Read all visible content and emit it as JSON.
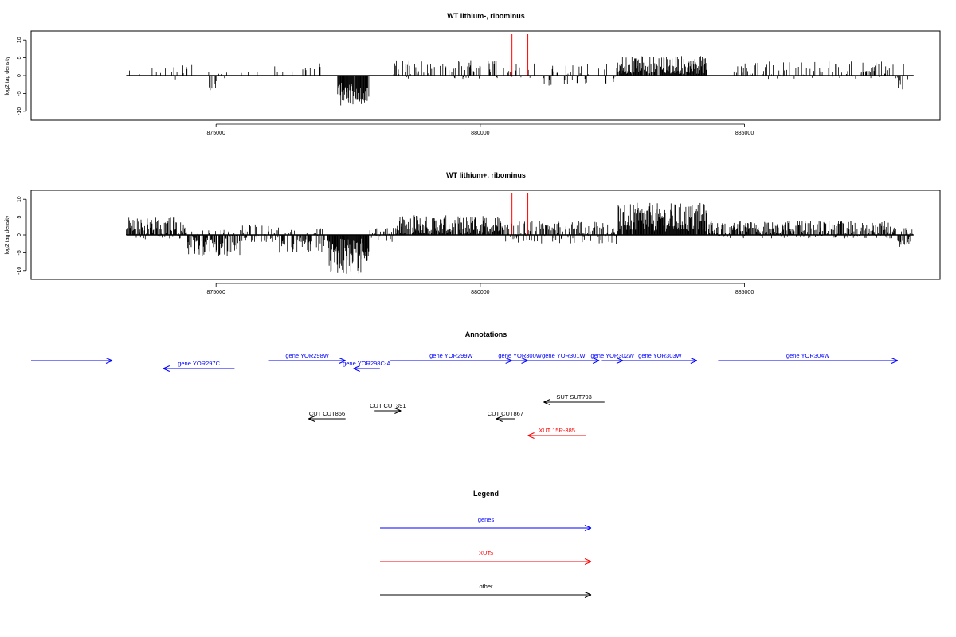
{
  "colors": {
    "gene": "#0000ff",
    "xut": "#ff0000",
    "other": "#000000",
    "marker": "#ff0000",
    "bars": "#000000"
  },
  "chart_data": [
    {
      "type": "bar",
      "title": "WT lithium-, ribominus",
      "ylabel": "log2 tag density",
      "xlim": [
        871500,
        888700
      ],
      "ylim": [
        -12.5,
        12.5
      ],
      "yticks": [
        -10,
        -5,
        0,
        5,
        10
      ],
      "xticks": [
        875000,
        880000,
        885000
      ],
      "x_tick_labels": [
        "875000",
        "880000",
        "885000"
      ],
      "marker_lines": [
        880600,
        880900
      ],
      "data_start": 873300,
      "data_end": 888200,
      "bar_step": 10,
      "segments": [
        {
          "from": 873300,
          "to": 874100,
          "lo": 0,
          "hi": 3.5,
          "p": 0.12
        },
        {
          "from": 874100,
          "to": 874800,
          "lo": -1.5,
          "hi": 3,
          "p": 0.07
        },
        {
          "from": 874800,
          "to": 875250,
          "lo": -5,
          "hi": 1,
          "p": 0.35
        },
        {
          "from": 875250,
          "to": 876800,
          "lo": 0,
          "hi": 3,
          "p": 0.04
        },
        {
          "from": 876800,
          "to": 877000,
          "lo": -2,
          "hi": 3.5,
          "p": 0.2
        },
        {
          "from": 877000,
          "to": 877300,
          "lo": 0,
          "hi": 0,
          "p": 0
        },
        {
          "from": 877300,
          "to": 877900,
          "lo": -8.5,
          "hi": -2,
          "p": 0.95
        },
        {
          "from": 877900,
          "to": 878300,
          "lo": -3,
          "hi": 0,
          "p": 0.03
        },
        {
          "from": 878300,
          "to": 880400,
          "lo": -1,
          "hi": 4.5,
          "p": 0.42
        },
        {
          "from": 880400,
          "to": 881100,
          "lo": -1,
          "hi": 4,
          "p": 0.2
        },
        {
          "from": 881100,
          "to": 882600,
          "lo": -3,
          "hi": 3.5,
          "p": 0.3
        },
        {
          "from": 882600,
          "to": 884300,
          "lo": 0.5,
          "hi": 5.5,
          "p": 0.9
        },
        {
          "from": 884300,
          "to": 884800,
          "lo": 0,
          "hi": 0,
          "p": 0
        },
        {
          "from": 884800,
          "to": 888100,
          "lo": -1,
          "hi": 4,
          "p": 0.35
        },
        {
          "from": 887900,
          "to": 888000,
          "lo": -4,
          "hi": 0,
          "p": 0.3
        }
      ]
    },
    {
      "type": "bar",
      "title": "WT lithium+, ribominus",
      "ylabel": "log2 tag density",
      "xlim": [
        871500,
        888700
      ],
      "ylim": [
        -12.5,
        12.5
      ],
      "yticks": [
        -10,
        -5,
        0,
        5,
        10
      ],
      "xticks": [
        875000,
        880000,
        885000
      ],
      "x_tick_labels": [
        "875000",
        "880000",
        "885000"
      ],
      "marker_lines": [
        880600,
        880900
      ],
      "data_start": 873300,
      "data_end": 888200,
      "bar_step": 10,
      "segments": [
        {
          "from": 873300,
          "to": 874450,
          "lo": -1.5,
          "hi": 5,
          "p": 0.9
        },
        {
          "from": 874450,
          "to": 875500,
          "lo": -6,
          "hi": 1.5,
          "p": 0.9
        },
        {
          "from": 875500,
          "to": 876200,
          "lo": -2,
          "hi": 3,
          "p": 0.6
        },
        {
          "from": 876200,
          "to": 877100,
          "lo": -5,
          "hi": 2,
          "p": 0.7
        },
        {
          "from": 877100,
          "to": 877900,
          "lo": -11,
          "hi": -1,
          "p": 0.98
        },
        {
          "from": 877900,
          "to": 878400,
          "lo": -2,
          "hi": 2,
          "p": 0.4
        },
        {
          "from": 878400,
          "to": 880400,
          "lo": 0,
          "hi": 5.5,
          "p": 0.92
        },
        {
          "from": 880400,
          "to": 882600,
          "lo": -2.5,
          "hi": 4,
          "p": 0.7
        },
        {
          "from": 882600,
          "to": 884300,
          "lo": 1,
          "hi": 9,
          "p": 0.98
        },
        {
          "from": 884300,
          "to": 887900,
          "lo": -1,
          "hi": 4,
          "p": 0.9
        },
        {
          "from": 887900,
          "to": 888200,
          "lo": -3.5,
          "hi": 2,
          "p": 0.8
        }
      ]
    }
  ],
  "annotations": {
    "title": "Annotations",
    "xlim": [
      871500,
      888700
    ],
    "features": [
      {
        "label": "gene YOR298W",
        "x1": 876000,
        "x2": 877450,
        "row": "up",
        "dir": "right",
        "kind": "gene"
      },
      {
        "label": "gene YOR297C",
        "x1": 874000,
        "x2": 875350,
        "row": "low",
        "dir": "left",
        "kind": "gene"
      },
      {
        "label": "gene YOR298C-A",
        "x1": 877600,
        "x2": 878100,
        "row": "low",
        "dir": "left",
        "kind": "gene"
      },
      {
        "label": "gene YOR299W",
        "x1": 878300,
        "x2": 880600,
        "row": "up",
        "dir": "right",
        "kind": "gene"
      },
      {
        "label": "gene YOR300W",
        "x1": 880600,
        "x2": 880900,
        "row": "up",
        "dir": "right",
        "kind": "gene"
      },
      {
        "label": "gene YOR301W",
        "x1": 880900,
        "x2": 882250,
        "row": "up",
        "dir": "right",
        "kind": "gene"
      },
      {
        "label": "gene YOR302W",
        "x1": 882300,
        "x2": 882700,
        "row": "up",
        "dir": "right",
        "kind": "gene"
      },
      {
        "label": "gene YOR303W",
        "x1": 882700,
        "x2": 884100,
        "row": "up",
        "dir": "right",
        "kind": "gene"
      },
      {
        "label": "gene YOR304W",
        "x1": 884500,
        "x2": 887900,
        "row": "up",
        "dir": "right",
        "kind": "gene"
      },
      {
        "label": "CUT CUT866",
        "x1": 876750,
        "x2": 877450,
        "row": "cut866",
        "dir": "left",
        "kind": "other"
      },
      {
        "label": "CUT CUT391",
        "x1": 878000,
        "x2": 878500,
        "row": "cut391",
        "dir": "right",
        "kind": "other"
      },
      {
        "label": "CUT CUT867",
        "x1": 880300,
        "x2": 880650,
        "row": "cut866",
        "dir": "left",
        "kind": "other"
      },
      {
        "label": "SUT SUT793",
        "x1": 881200,
        "x2": 882350,
        "row": "sut",
        "dir": "left",
        "kind": "other"
      },
      {
        "label": "XUT 15R-385",
        "x1": 880900,
        "x2": 882000,
        "row": "xut",
        "dir": "left",
        "kind": "xut"
      }
    ]
  },
  "legend": {
    "title": "Legend",
    "items": [
      {
        "label": "genes",
        "kind": "gene"
      },
      {
        "label": "XUTs",
        "kind": "xut"
      },
      {
        "label": "other",
        "kind": "other"
      }
    ]
  }
}
